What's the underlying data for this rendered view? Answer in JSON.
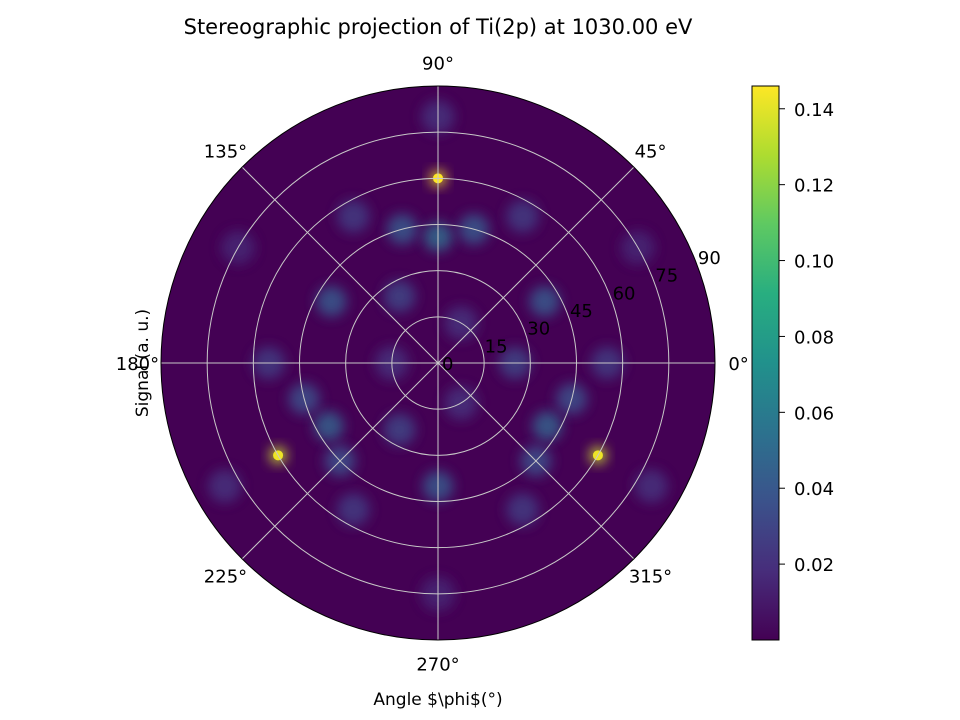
{
  "chart_data": {
    "type": "heatmap",
    "title": "Stereographic projection of Ti(2p) at 1030.00 eV",
    "xlabel": "Angle $\\phi$(°)",
    "ylabel": "Signal (a. u.)",
    "angle_ticks": [
      "0°",
      "45°",
      "90°",
      "135°",
      "180°",
      "225°",
      "270°",
      "315°"
    ],
    "angle_tick_values": [
      0,
      45,
      90,
      135,
      180,
      225,
      270,
      315
    ],
    "radial_ticks": [
      "0",
      "15",
      "30",
      "45",
      "60",
      "75",
      "90"
    ],
    "radial_tick_values": [
      0,
      15,
      30,
      45,
      60,
      75,
      90
    ],
    "radial_range": [
      0,
      90
    ],
    "colorbar": {
      "colormap": "viridis",
      "range": [
        0.0,
        0.146
      ],
      "ticks": [
        "0.02",
        "0.04",
        "0.06",
        "0.08",
        "0.10",
        "0.12",
        "0.14"
      ],
      "tick_values": [
        0.02,
        0.04,
        0.06,
        0.08,
        0.1,
        0.12,
        0.14
      ]
    },
    "grid": true,
    "peaks": [
      {
        "phi": 90,
        "theta": 60,
        "value": 0.146
      },
      {
        "phi": 210,
        "theta": 60,
        "value": 0.135
      },
      {
        "phi": 330,
        "theta": 60,
        "value": 0.135
      },
      {
        "phi": 90,
        "theta": 41,
        "value": 0.05
      },
      {
        "phi": 210,
        "theta": 41,
        "value": 0.045
      },
      {
        "phi": 330,
        "theta": 41,
        "value": 0.045
      },
      {
        "phi": 75,
        "theta": 45,
        "value": 0.04
      },
      {
        "phi": 105,
        "theta": 45,
        "value": 0.04
      },
      {
        "phi": 195,
        "theta": 45,
        "value": 0.035
      },
      {
        "phi": 225,
        "theta": 45,
        "value": 0.035
      },
      {
        "phi": 315,
        "theta": 45,
        "value": 0.035
      },
      {
        "phi": 345,
        "theta": 45,
        "value": 0.035
      },
      {
        "phi": 30,
        "theta": 40,
        "value": 0.04
      },
      {
        "phi": 150,
        "theta": 40,
        "value": 0.04
      },
      {
        "phi": 270,
        "theta": 40,
        "value": 0.04
      },
      {
        "phi": 0,
        "theta": 25,
        "value": 0.03
      },
      {
        "phi": 120,
        "theta": 25,
        "value": 0.03
      },
      {
        "phi": 240,
        "theta": 25,
        "value": 0.03
      },
      {
        "phi": 60,
        "theta": 55,
        "value": 0.025
      },
      {
        "phi": 120,
        "theta": 55,
        "value": 0.025
      },
      {
        "phi": 180,
        "theta": 55,
        "value": 0.025
      },
      {
        "phi": 240,
        "theta": 55,
        "value": 0.025
      },
      {
        "phi": 300,
        "theta": 55,
        "value": 0.025
      },
      {
        "phi": 0,
        "theta": 55,
        "value": 0.025
      },
      {
        "phi": 90,
        "theta": 80,
        "value": 0.02
      },
      {
        "phi": 210,
        "theta": 80,
        "value": 0.02
      },
      {
        "phi": 330,
        "theta": 80,
        "value": 0.02
      },
      {
        "phi": 30,
        "theta": 75,
        "value": 0.015
      },
      {
        "phi": 150,
        "theta": 75,
        "value": 0.015
      },
      {
        "phi": 270,
        "theta": 75,
        "value": 0.015
      },
      {
        "phi": 60,
        "theta": 15,
        "value": 0.02
      },
      {
        "phi": 180,
        "theta": 15,
        "value": 0.02
      },
      {
        "phi": 300,
        "theta": 15,
        "value": 0.02
      }
    ]
  }
}
